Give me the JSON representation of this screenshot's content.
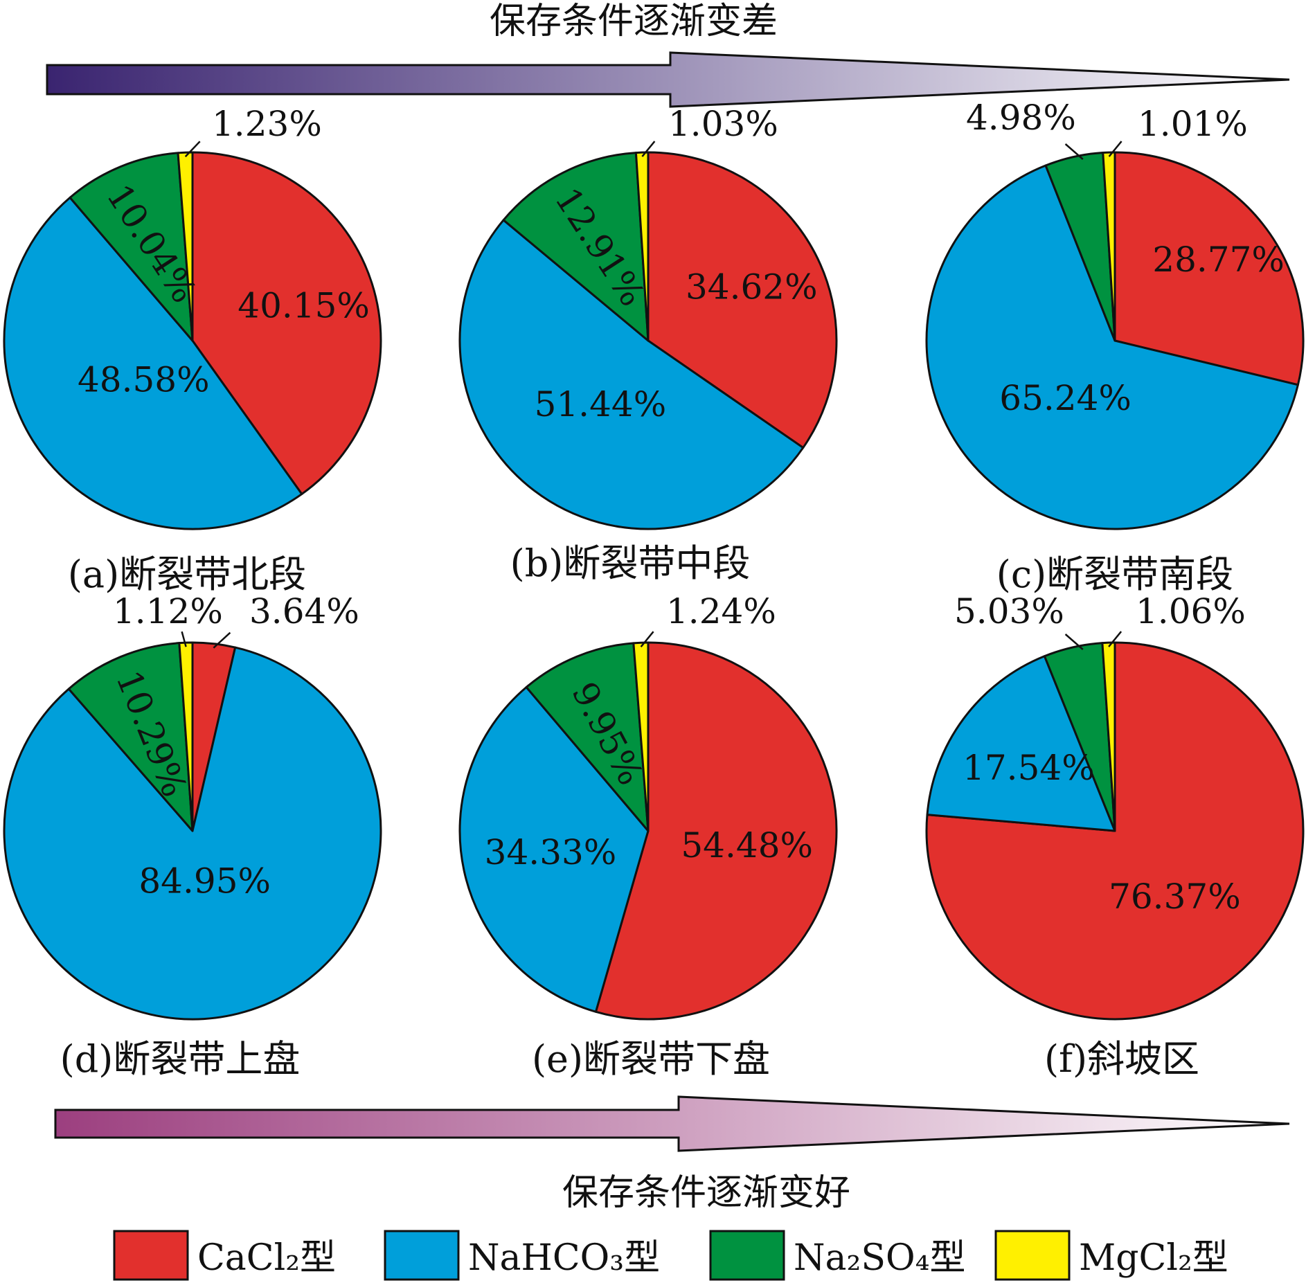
{
  "arrows": {
    "top": {
      "label": "保存条件逐渐变差",
      "color_start": "#3a2470",
      "color_end": "#ffffff"
    },
    "bottom": {
      "label": "保存条件逐渐变好",
      "color_start": "#9c3f7f",
      "color_end": "#ffffff"
    }
  },
  "legend": [
    {
      "label": "CaCl₂型",
      "color": "#e2302d"
    },
    {
      "label": "NaHCO₃型",
      "color": "#009fda"
    },
    {
      "label": "Na₂SO₄型",
      "color": "#009240"
    },
    {
      "label": "MgCl₂型",
      "color": "#fff000"
    }
  ],
  "chart_data": [
    {
      "type": "pie",
      "title": "(a)断裂带北段",
      "categories": [
        "CaCl₂型",
        "NaHCO₃型",
        "Na₂SO₄型",
        "MgCl₂型"
      ],
      "values": [
        40.15,
        48.58,
        10.04,
        1.23
      ],
      "labels": [
        "40.15%",
        "48.58%",
        "10.04%",
        "1.23%"
      ]
    },
    {
      "type": "pie",
      "title": "(b)断裂带中段",
      "categories": [
        "CaCl₂型",
        "NaHCO₃型",
        "Na₂SO₄型",
        "MgCl₂型"
      ],
      "values": [
        34.62,
        51.44,
        12.91,
        1.03
      ],
      "labels": [
        "34.62%",
        "51.44%",
        "12.91%",
        "1.03%"
      ]
    },
    {
      "type": "pie",
      "title": "(c)断裂带南段",
      "categories": [
        "CaCl₂型",
        "NaHCO₃型",
        "Na₂SO₄型",
        "MgCl₂型"
      ],
      "values": [
        28.77,
        65.24,
        4.98,
        1.01
      ],
      "labels": [
        "28.77%",
        "65.24%",
        "4.98%",
        "1.01%"
      ]
    },
    {
      "type": "pie",
      "title": "(d)断裂带上盘",
      "categories": [
        "CaCl₂型",
        "NaHCO₃型",
        "Na₂SO₄型",
        "MgCl₂型"
      ],
      "values": [
        3.64,
        84.95,
        10.29,
        1.12
      ],
      "labels": [
        "3.64%",
        "84.95%",
        "10.29%",
        "1.12%"
      ]
    },
    {
      "type": "pie",
      "title": "(e)断裂带下盘",
      "categories": [
        "CaCl₂型",
        "NaHCO₃型",
        "Na₂SO₄型",
        "MgCl₂型"
      ],
      "values": [
        54.48,
        34.33,
        9.95,
        1.24
      ],
      "labels": [
        "54.48%",
        "34.33%",
        "9.95%",
        "1.24%"
      ]
    },
    {
      "type": "pie",
      "title": "(f)斜坡区",
      "categories": [
        "CaCl₂型",
        "NaHCO₃型",
        "Na₂SO₄型",
        "MgCl₂型"
      ],
      "values": [
        76.37,
        17.54,
        5.03,
        1.06
      ],
      "labels": [
        "76.37%",
        "17.54%",
        "5.03%",
        "1.06%"
      ]
    }
  ]
}
